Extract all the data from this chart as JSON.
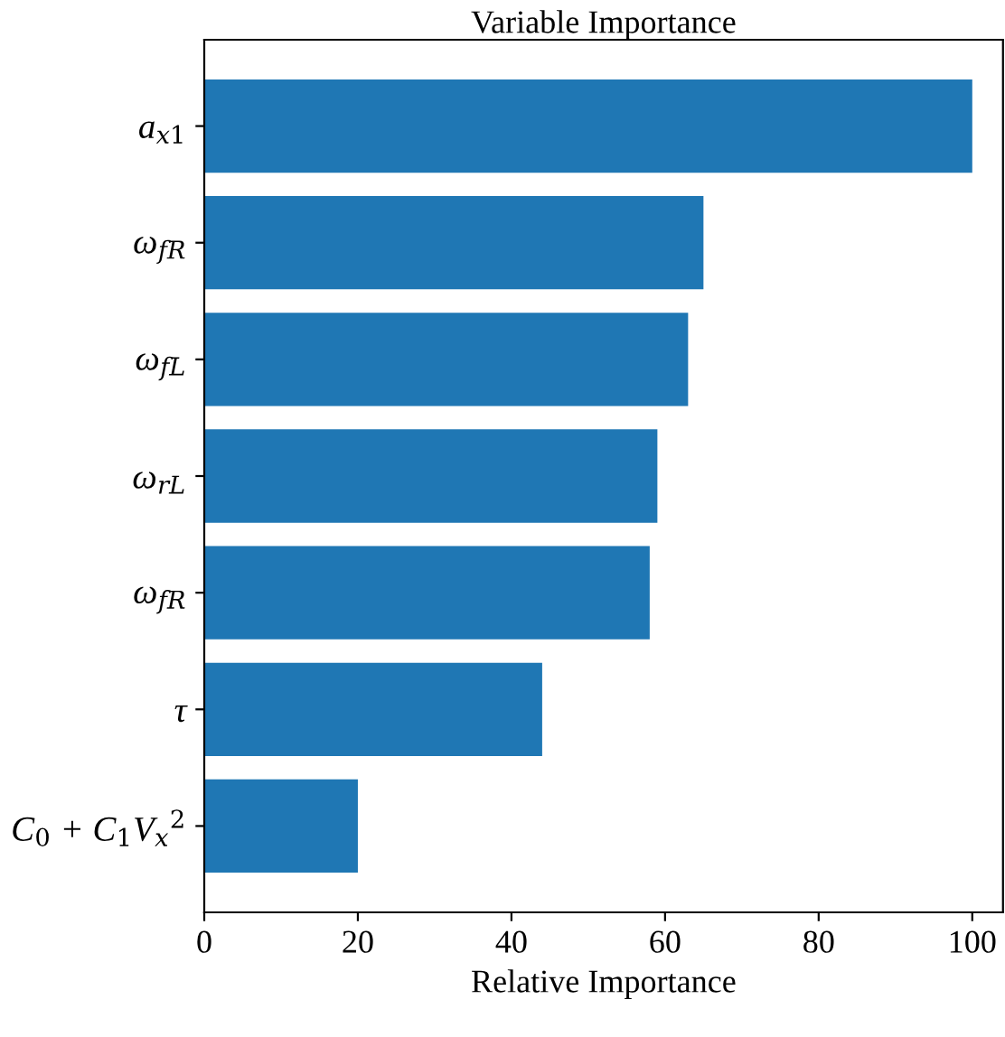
{
  "chart_data": {
    "type": "bar",
    "orientation": "horizontal",
    "title": "Variable Importance",
    "xlabel": "Relative Importance",
    "categories": [
      "a$_{x1}$",
      "ω$_{fR}$",
      "ω$_{fL}$",
      "ω$_{rL}$",
      "ω$_{fR}$",
      "τ",
      "C$_{0}$ + C$_{1}$V$_{x}$$^{2}$"
    ],
    "values": [
      100,
      65,
      63,
      59,
      58,
      44,
      20
    ],
    "color": "#1f77b4",
    "xlim": [
      0,
      104
    ],
    "xticks": [
      0,
      20,
      40,
      60,
      80,
      100
    ],
    "grid": false
  }
}
